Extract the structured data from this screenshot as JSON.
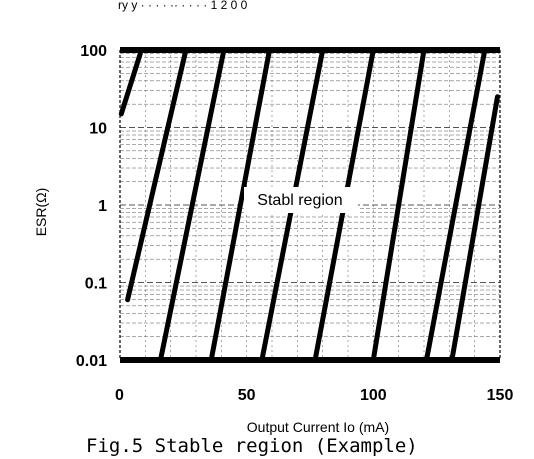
{
  "page": {
    "header_fragment": "ry   y  ·  · · ·  ·· ·  ·  ·  ·  1 2 0 0",
    "caption": "Fig.5 Stable region (Example)"
  },
  "chart_data": {
    "type": "line",
    "title": "",
    "xlabel": "Output Current Io (mA)",
    "ylabel": "ESR(Ω)",
    "xlim": [
      0,
      150
    ],
    "ylim": [
      0.01,
      100
    ],
    "yscale": "log",
    "grid": true,
    "xticks": [
      0,
      50,
      100,
      150
    ],
    "xtick_labels": [
      "0",
      "50",
      "100",
      "150"
    ],
    "yticks": [
      0.01,
      0.1,
      1,
      10,
      100
    ],
    "ytick_labels": [
      "0.01",
      "0.1",
      "1",
      "10",
      "100"
    ],
    "boundaries": {
      "top_esr": 100,
      "bottom_esr": 0.01
    },
    "annotations": [
      {
        "text": "Stabl region",
        "x": 75,
        "y": 1.3
      }
    ],
    "series": [
      {
        "values": [
          [
            0.5,
            15
          ],
          [
            8,
            90
          ]
        ]
      },
      {
        "values": [
          [
            3,
            0.06
          ],
          [
            26,
            100
          ]
        ]
      },
      {
        "values": [
          [
            16,
            0.01
          ],
          [
            41,
            100
          ]
        ]
      },
      {
        "values": [
          [
            36,
            0.01
          ],
          [
            59,
            100
          ]
        ]
      },
      {
        "values": [
          [
            56,
            0.01
          ],
          [
            80,
            100
          ]
        ]
      },
      {
        "values": [
          [
            77,
            0.01
          ],
          [
            100,
            100
          ]
        ]
      },
      {
        "values": [
          [
            100,
            0.01
          ],
          [
            120,
            100
          ]
        ]
      },
      {
        "values": [
          [
            121,
            0.01
          ],
          [
            144,
            100
          ]
        ]
      },
      {
        "values": [
          [
            131,
            0.01
          ],
          [
            149,
            25
          ]
        ]
      }
    ],
    "colors": {
      "line": "#000000",
      "grid": "#555555",
      "background": "#ffffff"
    }
  }
}
